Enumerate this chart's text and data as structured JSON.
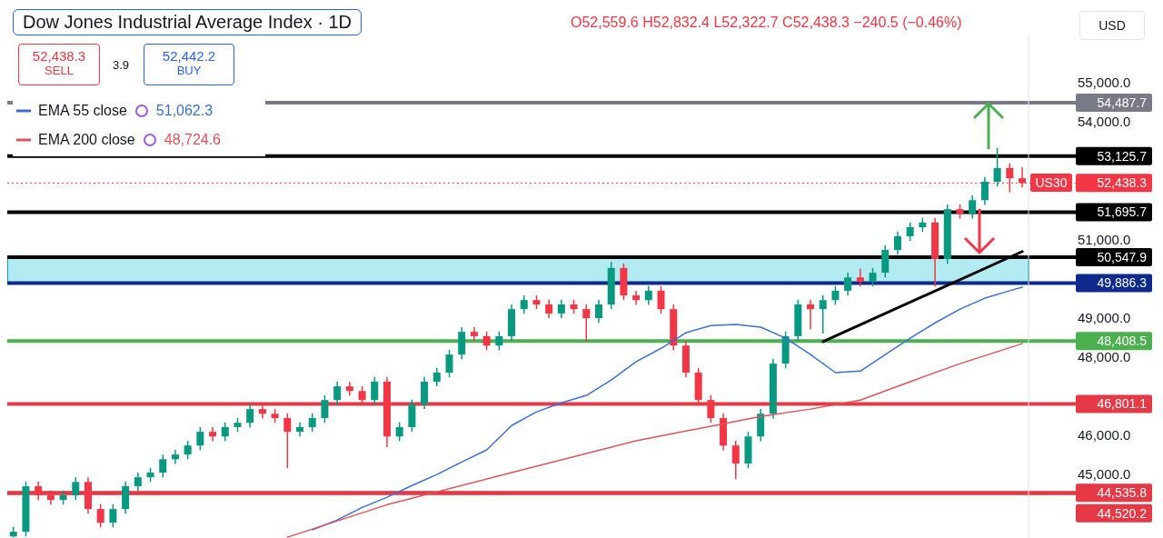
{
  "chart_data": {
    "type": "candlestick",
    "title": "Dow Jones Industrial Average Index · 1D",
    "subtitle": "O52,559.6 H52,832.4 L52,322.7 C52,438.3 −240.5 (−0.46%)",
    "categories": [
      null,
      null,
      null,
      null,
      null,
      null,
      null,
      null,
      null,
      null,
      null,
      null,
      null,
      null,
      null,
      null,
      null,
      null,
      null,
      null,
      null,
      null,
      null,
      null,
      null,
      null,
      null,
      null,
      null,
      null,
      null,
      null,
      null,
      null,
      null,
      null,
      null,
      null,
      null,
      null,
      null,
      null,
      null,
      null,
      null,
      null,
      null,
      null,
      null,
      null,
      null,
      null,
      null,
      null,
      null,
      null,
      null,
      null,
      null,
      null,
      null,
      null,
      null,
      null,
      null,
      null,
      null,
      null,
      null,
      null,
      null,
      null,
      null,
      null,
      null,
      null,
      null,
      null,
      null,
      null,
      null,
      null
    ],
    "ohlc": [
      [
        43420,
        43660,
        43400,
        43540
      ],
      [
        43540,
        44820,
        43420,
        44700
      ],
      [
        44700,
        44820,
        44350,
        44470
      ],
      [
        44470,
        44590,
        44230,
        44350
      ],
      [
        44350,
        44590,
        44230,
        44470
      ],
      [
        44470,
        44930,
        44350,
        44810
      ],
      [
        44810,
        44930,
        44000,
        44120
      ],
      [
        44120,
        44240,
        43650,
        43770
      ],
      [
        43770,
        44240,
        43650,
        44120
      ],
      [
        44120,
        44820,
        44000,
        44700
      ],
      [
        44700,
        45050,
        44580,
        44930
      ],
      [
        44930,
        45170,
        44810,
        45050
      ],
      [
        45050,
        45510,
        44930,
        45390
      ],
      [
        45390,
        45630,
        45270,
        45510
      ],
      [
        45510,
        45860,
        45390,
        45740
      ],
      [
        45740,
        46210,
        45620,
        46090
      ],
      [
        46090,
        46210,
        45850,
        45970
      ],
      [
        45970,
        46330,
        45850,
        46210
      ],
      [
        46210,
        46440,
        46090,
        46320
      ],
      [
        46320,
        46790,
        46200,
        46670
      ],
      [
        46670,
        46790,
        46430,
        46550
      ],
      [
        46550,
        46670,
        46320,
        46440
      ],
      [
        46440,
        46560,
        45160,
        46090
      ],
      [
        46090,
        46330,
        45970,
        46210
      ],
      [
        46210,
        46560,
        46090,
        46440
      ],
      [
        46440,
        47020,
        46320,
        46900
      ],
      [
        46900,
        47370,
        46780,
        47250
      ],
      [
        47250,
        47370,
        47010,
        47130
      ],
      [
        47130,
        47250,
        46780,
        46900
      ],
      [
        46900,
        47490,
        46780,
        47370
      ],
      [
        47370,
        47490,
        45700,
        45970
      ],
      [
        45970,
        46330,
        45850,
        46210
      ],
      [
        46210,
        46910,
        46090,
        46790
      ],
      [
        46790,
        47490,
        46670,
        47370
      ],
      [
        47370,
        47720,
        47250,
        47600
      ],
      [
        47600,
        48180,
        47480,
        48060
      ],
      [
        48060,
        48760,
        47940,
        48640
      ],
      [
        48640,
        48760,
        48410,
        48530
      ],
      [
        48530,
        48650,
        48170,
        48290
      ],
      [
        48290,
        48650,
        48170,
        48530
      ],
      [
        48530,
        49340,
        48410,
        49220
      ],
      [
        49220,
        49570,
        49100,
        49450
      ],
      [
        49450,
        49570,
        49220,
        49340
      ],
      [
        49340,
        49460,
        48990,
        49110
      ],
      [
        49110,
        49460,
        48990,
        49340
      ],
      [
        49340,
        49460,
        49100,
        49220
      ],
      [
        49220,
        49340,
        48400,
        48990
      ],
      [
        48990,
        49460,
        48870,
        49340
      ],
      [
        49340,
        50420,
        49220,
        50270
      ],
      [
        50270,
        50390,
        49450,
        49570
      ],
      [
        49570,
        49690,
        49330,
        49450
      ],
      [
        49450,
        49810,
        49330,
        49690
      ],
      [
        49690,
        49810,
        49100,
        49220
      ],
      [
        49220,
        49340,
        48170,
        48290
      ],
      [
        48290,
        48410,
        47480,
        47600
      ],
      [
        47600,
        47720,
        46780,
        46900
      ],
      [
        46900,
        47020,
        46320,
        46440
      ],
      [
        46440,
        46560,
        45620,
        45740
      ],
      [
        45740,
        45860,
        44880,
        45280
      ],
      [
        45280,
        46090,
        45160,
        45970
      ],
      [
        45970,
        46670,
        45850,
        46550
      ],
      [
        46550,
        47950,
        46430,
        47830
      ],
      [
        47830,
        48650,
        47710,
        48530
      ],
      [
        48530,
        49460,
        48410,
        49340
      ],
      [
        49340,
        49460,
        48700,
        49220
      ],
      [
        49220,
        49570,
        48600,
        49450
      ],
      [
        49450,
        49810,
        49330,
        49690
      ],
      [
        49690,
        50150,
        49570,
        50030
      ],
      [
        50030,
        50250,
        49800,
        49920
      ],
      [
        49920,
        50270,
        49800,
        50150
      ],
      [
        50150,
        50850,
        50030,
        50730
      ],
      [
        50730,
        51200,
        50610,
        51080
      ],
      [
        51080,
        51430,
        50960,
        51310
      ],
      [
        51310,
        51550,
        51190,
        51430
      ],
      [
        51430,
        51550,
        49800,
        50500
      ],
      [
        50500,
        51890,
        50380,
        51770
      ],
      [
        51770,
        51890,
        51530,
        51650
      ],
      [
        51650,
        52120,
        51530,
        52000
      ],
      [
        52000,
        52590,
        51880,
        52470
      ],
      [
        52470,
        53330,
        52350,
        52820
      ],
      [
        52820,
        52940,
        52200,
        52560
      ],
      [
        52559.6,
        52832.4,
        52322.7,
        52438.3
      ]
    ],
    "series": [
      {
        "name": "EMA 55 close",
        "type": "line",
        "color": "#3a6fd8",
        "values": [
          null,
          null,
          null,
          null,
          null,
          null,
          null,
          null,
          null,
          null,
          null,
          null,
          null,
          null,
          null,
          null,
          null,
          null,
          null,
          null,
          null,
          null,
          null,
          null,
          43590,
          null,
          43840,
          null,
          44160,
          null,
          44420,
          null,
          44720,
          null,
          45000,
          null,
          45320,
          null,
          45630,
          null,
          46250,
          null,
          46600,
          null,
          46830,
          null,
          47020,
          null,
          47410,
          null,
          47880,
          null,
          48220,
          null,
          48620,
          null,
          48800,
          null,
          48830,
          null,
          48760,
          null,
          48480,
          null,
          48060,
          null,
          47600,
          null,
          47640,
          null,
          48060,
          null,
          48480,
          null,
          48870,
          null,
          49220,
          null,
          49500,
          null,
          49690,
          49780
        ]
      },
      {
        "name": "EMA 200 close",
        "type": "line",
        "color": "#e0525a",
        "values": [
          null,
          null,
          null,
          null,
          null,
          null,
          null,
          null,
          null,
          null,
          null,
          null,
          null,
          null,
          null,
          null,
          null,
          null,
          null,
          null,
          null,
          null,
          43400,
          null,
          null,
          null,
          null,
          null,
          null,
          null,
          44230,
          null,
          null,
          null,
          null,
          null,
          null,
          null,
          null,
          null,
          45050,
          null,
          null,
          null,
          null,
          null,
          null,
          null,
          null,
          null,
          45860,
          null,
          null,
          null,
          null,
          null,
          null,
          null,
          null,
          null,
          46480,
          null,
          null,
          null,
          46670,
          null,
          null,
          null,
          46900,
          null,
          null,
          null,
          47370,
          null,
          null,
          null,
          47830,
          null,
          null,
          null,
          null,
          48340
        ]
      },
      {
        "type": "line",
        "color": "#000000",
        "values": [
          null,
          null,
          null,
          null,
          null,
          null,
          null,
          null,
          null,
          null,
          null,
          null,
          null,
          null,
          null,
          null,
          null,
          null,
          null,
          null,
          null,
          null,
          null,
          null,
          null,
          null,
          null,
          null,
          null,
          null,
          null,
          null,
          null,
          null,
          null,
          null,
          null,
          null,
          null,
          null,
          null,
          null,
          null,
          null,
          null,
          null,
          null,
          null,
          null,
          null,
          null,
          null,
          null,
          null,
          null,
          null,
          null,
          null,
          null,
          null,
          null,
          null,
          null,
          null,
          null,
          48390,
          null,
          null,
          null,
          null,
          null,
          null,
          null,
          null,
          null,
          null,
          null,
          null,
          null,
          null,
          null,
          50690
        ]
      }
    ],
    "ylim": [
      43380,
      56180
    ],
    "yticks": [
      {
        "value": 45000,
        "label": "45,000.0"
      },
      {
        "value": 46000,
        "label": "46,000.0"
      },
      {
        "value": 48000,
        "label": "48,000.0"
      },
      {
        "value": 49000,
        "label": "49,000.0"
      },
      {
        "value": 51000,
        "label": "51,000.0"
      },
      {
        "value": 54000,
        "label": "54,000.0"
      },
      {
        "value": 55000,
        "label": "55,000.0"
      }
    ],
    "tick_labels": "y",
    "legend": "top left",
    "marker": "none",
    "ref_lines": [
      {
        "axis": "y",
        "value": 54487.7,
        "label": "54,487.7",
        "color": "#787b86"
      },
      {
        "axis": "y",
        "value": 53125.7,
        "label": "53,125.7",
        "color": "#000000"
      },
      {
        "axis": "y",
        "value": 52438.3,
        "label": "52,438.3",
        "color": "#f23645",
        "line_style": "dotted"
      },
      {
        "axis": "y",
        "value": 51695.7,
        "label": "51,695.7",
        "color": "#000000"
      },
      {
        "axis": "y",
        "value": 50547.9,
        "label": "50,547.9",
        "color": "#000000"
      },
      {
        "axis": "y",
        "value": 49886.3,
        "label": "49,886.3",
        "color": "#0d2a8c"
      },
      {
        "axis": "y",
        "value": 48408.5,
        "label": "48,408.5",
        "color": "#4caf50"
      },
      {
        "axis": "y",
        "value": 46801.1,
        "label": "46,801.1",
        "color": "#e53945"
      },
      {
        "axis": "y",
        "value": 44535.8,
        "label": "44,535.8",
        "color": "#e53945"
      },
      {
        "axis": "y",
        "value": 44520.2,
        "label": "44,520.2",
        "color": "#e53945"
      }
    ],
    "bands": [
      {
        "axis": "y",
        "from": 49886.3,
        "to": 50547.9,
        "color": "#b2ebf2"
      }
    ],
    "annotations": [
      "52,438.3",
      "SELL",
      "3.9",
      "52,442.2",
      "BUY",
      "51,062.3",
      "48,724.6",
      "USD",
      "US30"
    ]
  }
}
